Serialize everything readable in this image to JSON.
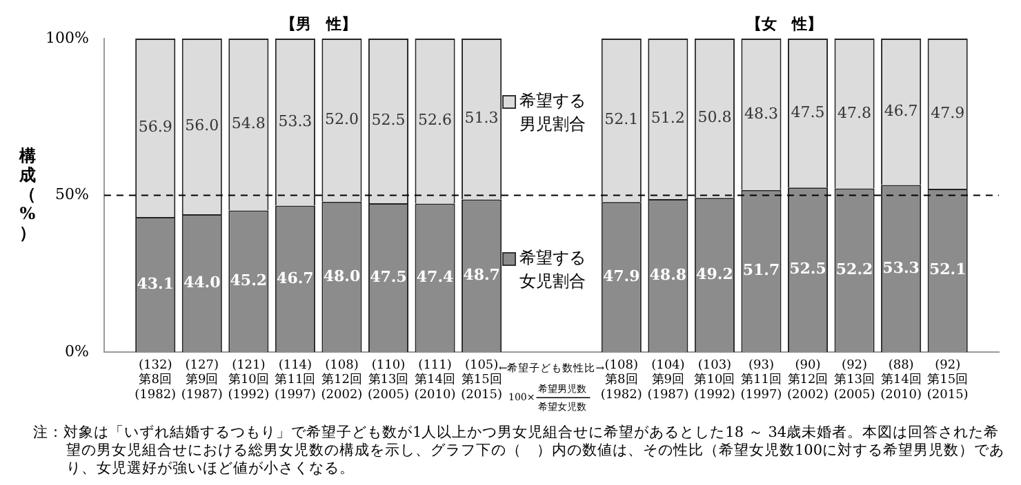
{
  "chart_data": {
    "type": "bar",
    "stacked": true,
    "categories": [
      "(132)\n第8回\n(1982)",
      "(127)\n第9回\n(1987)",
      "(121)\n第10回\n(1992)",
      "(114)\n第11回\n(1997)",
      "(108)\n第12回\n(2002)",
      "(110)\n第13回\n(2005)",
      "(111)\n第14回\n(2010)",
      "(105)\n第15回\n(2015)",
      null,
      "(108)\n第8回\n(1982)",
      "(104)\n第9回\n(1987)",
      "(103)\n第10回\n(1992)",
      "(93)\n第11回\n(1997)",
      "(90)\n第12回\n(2002)",
      "(92)\n第13回\n(2005)",
      "(88)\n第14回\n(2010)",
      "(92)\n第15回\n(2015)"
    ],
    "series": [
      {
        "name": "希望する女児割合",
        "color": "#8c8c8c",
        "values": [
          43.1,
          44.0,
          45.2,
          46.7,
          48.0,
          47.5,
          47.4,
          48.7,
          null,
          47.9,
          48.8,
          49.2,
          51.7,
          52.5,
          52.2,
          53.3,
          52.1
        ],
        "value_labels": [
          "43.1",
          "44.0",
          "45.2",
          "46.7",
          "48.0",
          "47.5",
          "47.4",
          "48.7",
          null,
          "47.9",
          "48.8",
          "49.2",
          "51.7",
          "52.5",
          "52.2",
          "53.3",
          "52.1"
        ]
      },
      {
        "name": "希望する男児割合",
        "color": "#dcdcdc",
        "values": [
          56.9,
          56.0,
          54.8,
          53.3,
          52.0,
          52.5,
          52.6,
          51.3,
          null,
          52.1,
          51.2,
          50.8,
          48.3,
          47.5,
          47.8,
          46.7,
          47.9
        ],
        "value_labels": [
          "56.9",
          "56.0",
          "54.8",
          "53.3",
          "52.0",
          "52.5",
          "52.6",
          "51.3",
          null,
          "52.1",
          "51.2",
          "50.8",
          "48.3",
          "47.5",
          "47.8",
          "46.7",
          "47.9"
        ]
      }
    ],
    "ylabel": "構成（%）",
    "ylim": [
      0,
      100
    ],
    "yticks": [
      {
        "value": 0,
        "label": "0%"
      },
      {
        "value": 50,
        "label": "50%"
      },
      {
        "value": 100,
        "label": "100%"
      }
    ],
    "ref_lines": [
      {
        "axis": "y",
        "value": 50,
        "line_style": "dashed",
        "color": "#000000"
      }
    ],
    "grid": false,
    "legend": "center",
    "annotations": [
      "【男　性】",
      "【女　性】",
      "←希望子ども数性比→",
      "100×",
      "希望男児数",
      "希望女児数",
      "注：対象は「いずれ結婚するつもり」で希望子ども数が1人以上かつ男女児組合せに希望があるとした18 ～ 34歳未婚者。本図は回答された希望の男女児組合せにおける総男女児数の構成を示し、グラフ下の（　）内の数値は、その性比（希望女児数100に対する希望男児数）であり、女児選好が強いほど値が小さくなる。"
    ]
  }
}
